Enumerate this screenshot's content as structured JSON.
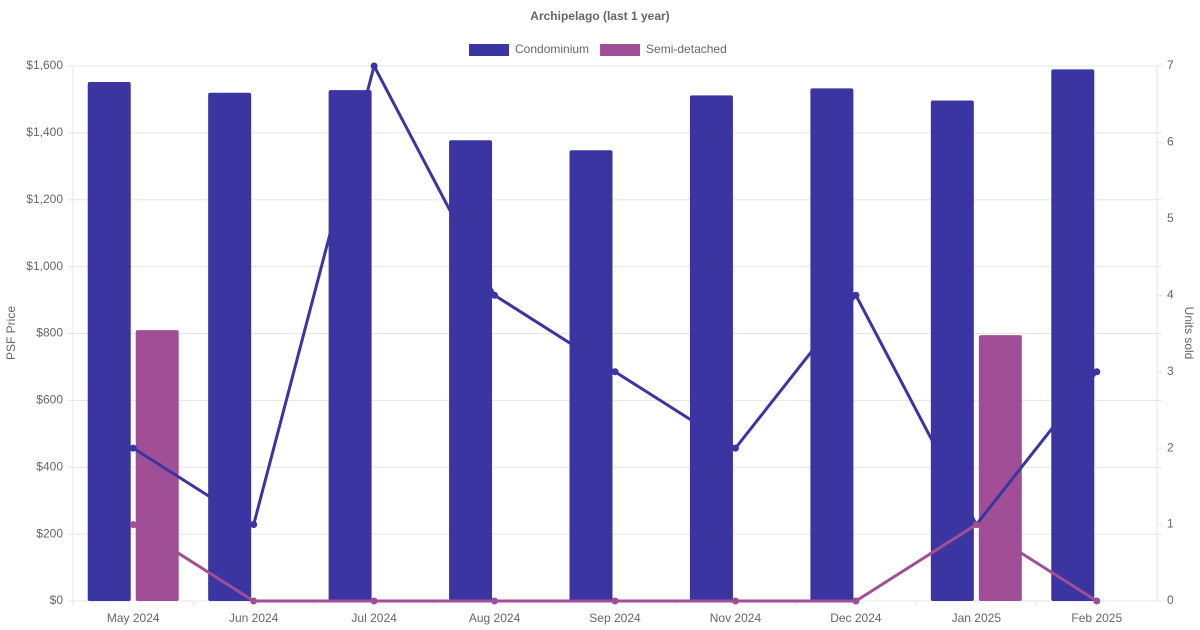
{
  "chart_data": {
    "type": "bar-line",
    "title": "Archipelago (last 1 year)",
    "y_label": "PSF Price",
    "y2_label": "Units sold",
    "categories": [
      "May 2024",
      "Jun 2024",
      "Jul 2024",
      "Aug 2024",
      "Sep 2024",
      "Nov 2024",
      "Dec 2024",
      "Jan 2025",
      "Feb 2025"
    ],
    "series": [
      {
        "name": "Condominium",
        "color": "#3a35a0",
        "values": [
          1552,
          1520,
          1528,
          1378,
          1348,
          1512,
          1533,
          1497,
          1590
        ],
        "units": [
          2,
          1,
          7,
          4,
          3,
          2,
          4,
          1,
          3
        ]
      },
      {
        "name": "Semi-detached",
        "color": "#a04f96",
        "values": [
          810,
          null,
          null,
          null,
          null,
          null,
          null,
          795,
          null
        ],
        "units": [
          1,
          0,
          0,
          0,
          0,
          0,
          0,
          1,
          0
        ]
      }
    ],
    "ylim": [
      0,
      1600
    ],
    "yticks": [
      {
        "value": 0,
        "label": "$0"
      },
      {
        "value": 200,
        "label": "$200"
      },
      {
        "value": 400,
        "label": "$400"
      },
      {
        "value": 600,
        "label": "$600"
      },
      {
        "value": 800,
        "label": "$800"
      },
      {
        "value": 1000,
        "label": "$1,000"
      },
      {
        "value": 1200,
        "label": "$1,200"
      },
      {
        "value": 1400,
        "label": "$1,400"
      },
      {
        "value": 1600,
        "label": "$1,600"
      }
    ],
    "y2lim": [
      0,
      7
    ],
    "y2ticks": [
      0,
      1,
      2,
      3,
      4,
      5,
      6,
      7
    ],
    "grid": true,
    "legend": "top"
  }
}
